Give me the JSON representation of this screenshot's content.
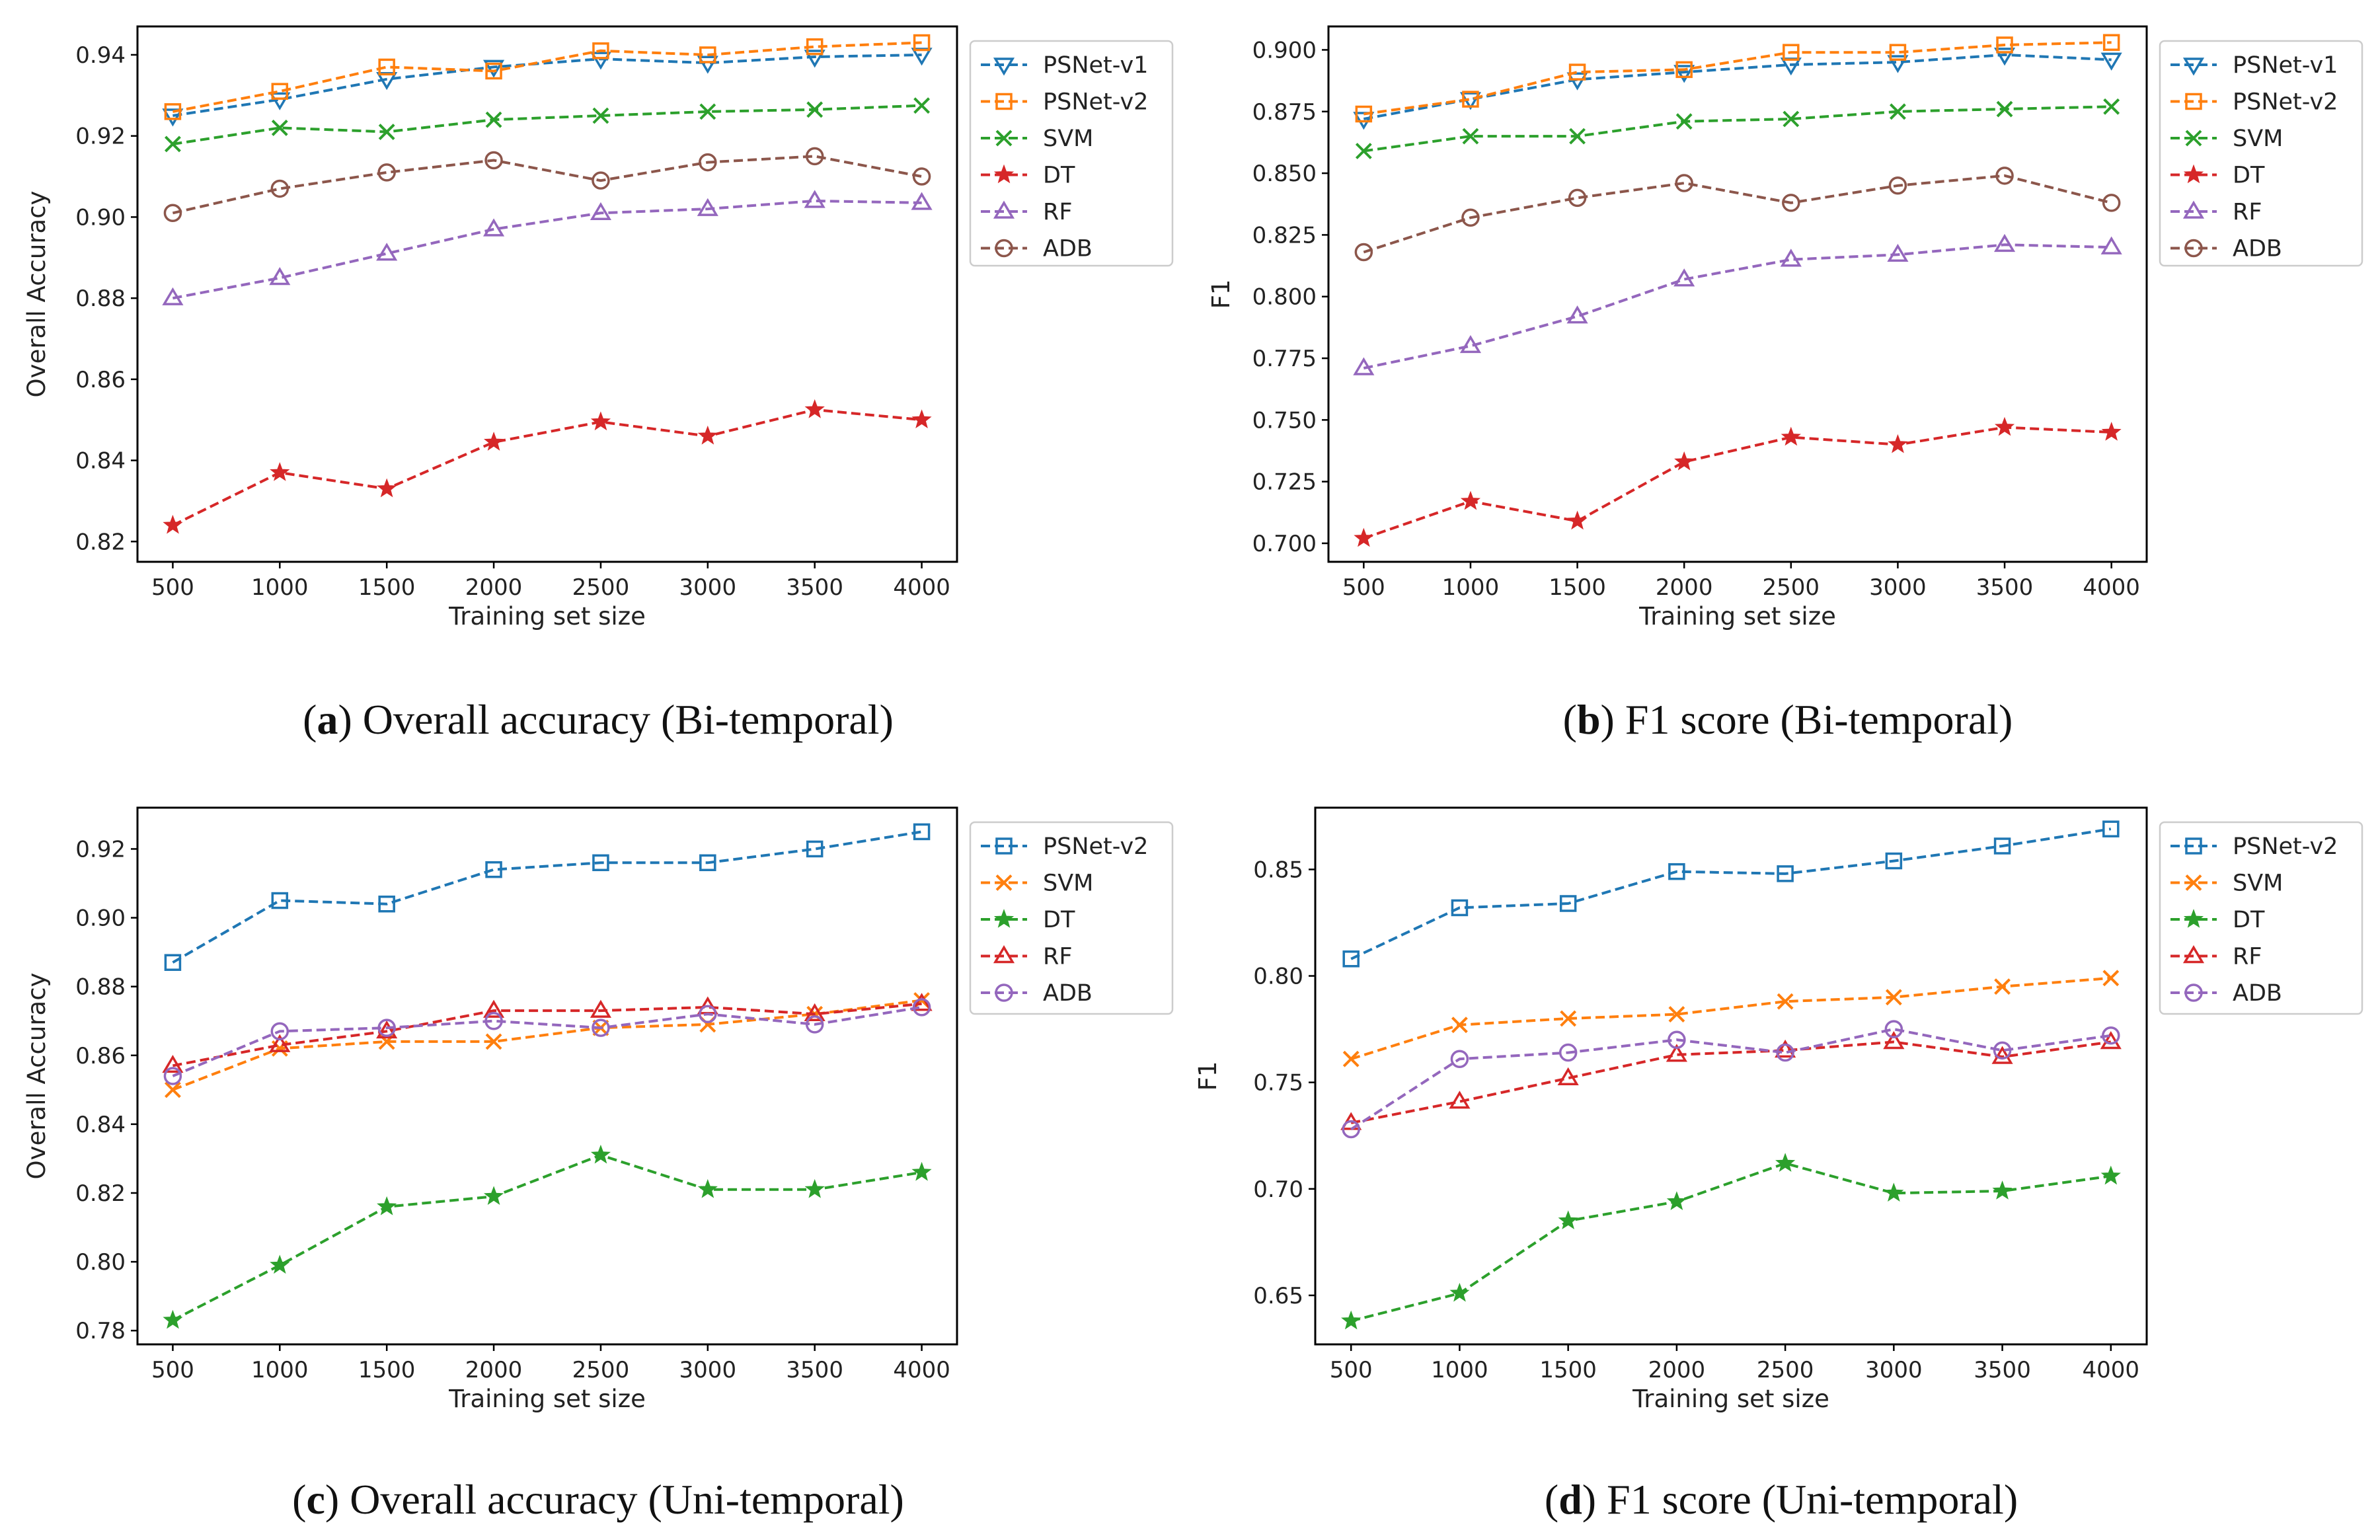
{
  "chart_data": [
    {
      "id": "a",
      "type": "line",
      "caption": {
        "letter": "a",
        "text": " Overall accuracy (Bi-temporal)"
      },
      "xlabel": "Training set size",
      "ylabel": "Overall Accuracy",
      "x": [
        500,
        1000,
        1500,
        2000,
        2500,
        3000,
        3500,
        4000
      ],
      "xticks": [
        "500",
        "1000",
        "1500",
        "2000",
        "2500",
        "3000",
        "3500",
        "4000"
      ],
      "ylim": [
        0.815,
        0.947
      ],
      "yticks": [
        "0.82",
        "0.84",
        "0.86",
        "0.88",
        "0.90",
        "0.92",
        "0.94"
      ],
      "legend_position": "outside-right",
      "series": [
        {
          "name": "PSNet-v1",
          "marker": "triangle-down",
          "color": "#1f77b4",
          "values": [
            0.925,
            0.929,
            0.934,
            0.937,
            0.939,
            0.938,
            0.9395,
            0.94
          ]
        },
        {
          "name": "PSNet-v2",
          "marker": "square",
          "color": "#ff7f0e",
          "values": [
            0.926,
            0.931,
            0.937,
            0.936,
            0.941,
            0.94,
            0.942,
            0.943
          ]
        },
        {
          "name": "SVM",
          "marker": "x",
          "color": "#2ca02c",
          "values": [
            0.918,
            0.922,
            0.921,
            0.924,
            0.925,
            0.926,
            0.9265,
            0.9275
          ]
        },
        {
          "name": "DT",
          "marker": "star",
          "color": "#d62728",
          "values": [
            0.824,
            0.837,
            0.833,
            0.8445,
            0.8495,
            0.846,
            0.8525,
            0.85
          ]
        },
        {
          "name": "RF",
          "marker": "triangle-up",
          "color": "#9467bd",
          "values": [
            0.88,
            0.885,
            0.891,
            0.897,
            0.901,
            0.902,
            0.904,
            0.9035
          ]
        },
        {
          "name": "ADB",
          "marker": "circle",
          "color": "#8c564b",
          "values": [
            0.901,
            0.907,
            0.911,
            0.914,
            0.909,
            0.9135,
            0.915,
            0.91
          ]
        }
      ]
    },
    {
      "id": "b",
      "type": "line",
      "caption": {
        "letter": "b",
        "text": " F1 score (Bi-temporal)"
      },
      "xlabel": "Training set size",
      "ylabel": "F1",
      "x": [
        500,
        1000,
        1500,
        2000,
        2500,
        3000,
        3500,
        4000
      ],
      "xticks": [
        "500",
        "1000",
        "1500",
        "2000",
        "2500",
        "3000",
        "3500",
        "4000"
      ],
      "ylim": [
        0.6925,
        0.9095
      ],
      "yticks": [
        "0.700",
        "0.725",
        "0.750",
        "0.775",
        "0.800",
        "0.825",
        "0.850",
        "0.875",
        "0.900"
      ],
      "legend_position": "outside-right",
      "series": [
        {
          "name": "PSNet-v1",
          "marker": "triangle-down",
          "color": "#1f77b4",
          "values": [
            0.872,
            0.88,
            0.888,
            0.891,
            0.894,
            0.895,
            0.898,
            0.896
          ]
        },
        {
          "name": "PSNet-v2",
          "marker": "square",
          "color": "#ff7f0e",
          "values": [
            0.874,
            0.88,
            0.891,
            0.892,
            0.899,
            0.899,
            0.902,
            0.903
          ]
        },
        {
          "name": "SVM",
          "marker": "x",
          "color": "#2ca02c",
          "values": [
            0.859,
            0.865,
            0.865,
            0.871,
            0.872,
            0.875,
            0.876,
            0.877
          ]
        },
        {
          "name": "DT",
          "marker": "star",
          "color": "#d62728",
          "values": [
            0.702,
            0.717,
            0.709,
            0.733,
            0.743,
            0.74,
            0.747,
            0.745
          ]
        },
        {
          "name": "RF",
          "marker": "triangle-up",
          "color": "#9467bd",
          "values": [
            0.771,
            0.78,
            0.792,
            0.807,
            0.815,
            0.817,
            0.821,
            0.82
          ]
        },
        {
          "name": "ADB",
          "marker": "circle",
          "color": "#8c564b",
          "values": [
            0.818,
            0.832,
            0.84,
            0.846,
            0.838,
            0.845,
            0.849,
            0.838
          ]
        }
      ]
    },
    {
      "id": "c",
      "type": "line",
      "caption": {
        "letter": "c",
        "text": " Overall accuracy (Uni-temporal)"
      },
      "xlabel": "Training set size",
      "ylabel": "Overall Accuracy",
      "x": [
        500,
        1000,
        1500,
        2000,
        2500,
        3000,
        3500,
        4000
      ],
      "xticks": [
        "500",
        "1000",
        "1500",
        "2000",
        "2500",
        "3000",
        "3500",
        "4000"
      ],
      "ylim": [
        0.776,
        0.932
      ],
      "yticks": [
        "0.78",
        "0.80",
        "0.82",
        "0.84",
        "0.86",
        "0.88",
        "0.90",
        "0.92"
      ],
      "legend_position": "outside-right",
      "series": [
        {
          "name": "PSNet-v2",
          "marker": "square",
          "color": "#1f77b4",
          "values": [
            0.887,
            0.905,
            0.904,
            0.914,
            0.916,
            0.916,
            0.92,
            0.925
          ]
        },
        {
          "name": "SVM",
          "marker": "x",
          "color": "#ff7f0e",
          "values": [
            0.85,
            0.862,
            0.864,
            0.864,
            0.868,
            0.869,
            0.872,
            0.876
          ]
        },
        {
          "name": "DT",
          "marker": "star",
          "color": "#2ca02c",
          "values": [
            0.783,
            0.799,
            0.816,
            0.819,
            0.831,
            0.821,
            0.821,
            0.826
          ]
        },
        {
          "name": "RF",
          "marker": "triangle-up",
          "color": "#d62728",
          "values": [
            0.857,
            0.863,
            0.867,
            0.873,
            0.873,
            0.874,
            0.872,
            0.875
          ]
        },
        {
          "name": "ADB",
          "marker": "circle",
          "color": "#9467bd",
          "values": [
            0.854,
            0.867,
            0.868,
            0.87,
            0.868,
            0.872,
            0.869,
            0.874
          ]
        }
      ]
    },
    {
      "id": "d",
      "type": "line",
      "caption": {
        "letter": "d",
        "text": " F1 score (Uni-temporal)"
      },
      "xlabel": "Training set size",
      "ylabel": "F1",
      "x": [
        500,
        1000,
        1500,
        2000,
        2500,
        3000,
        3500,
        4000
      ],
      "xticks": [
        "500",
        "1000",
        "1500",
        "2000",
        "2500",
        "3000",
        "3500",
        "4000"
      ],
      "ylim": [
        0.627,
        0.879
      ],
      "yticks": [
        "0.65",
        "0.70",
        "0.75",
        "0.80",
        "0.85"
      ],
      "legend_position": "outside-right",
      "series": [
        {
          "name": "PSNet-v2",
          "marker": "square",
          "color": "#1f77b4",
          "values": [
            0.808,
            0.832,
            0.834,
            0.849,
            0.848,
            0.854,
            0.861,
            0.869
          ]
        },
        {
          "name": "SVM",
          "marker": "x",
          "color": "#ff7f0e",
          "values": [
            0.761,
            0.777,
            0.78,
            0.782,
            0.788,
            0.79,
            0.795,
            0.799
          ]
        },
        {
          "name": "DT",
          "marker": "star",
          "color": "#2ca02c",
          "values": [
            0.638,
            0.651,
            0.685,
            0.694,
            0.712,
            0.698,
            0.699,
            0.706
          ]
        },
        {
          "name": "RF",
          "marker": "triangle-up",
          "color": "#d62728",
          "values": [
            0.731,
            0.741,
            0.752,
            0.763,
            0.765,
            0.769,
            0.762,
            0.769
          ]
        },
        {
          "name": "ADB",
          "marker": "circle",
          "color": "#9467bd",
          "values": [
            0.728,
            0.761,
            0.764,
            0.77,
            0.764,
            0.775,
            0.765,
            0.772
          ]
        }
      ]
    }
  ]
}
